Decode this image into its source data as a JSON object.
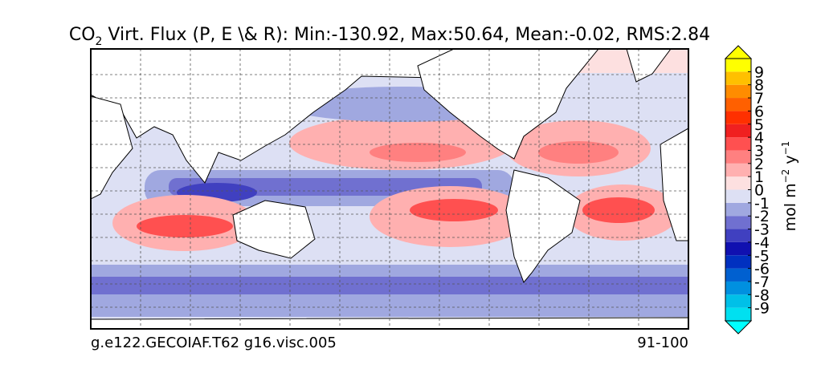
{
  "title": {
    "main": "CO",
    "sub": "2",
    "rest": " Virt. Flux (P, E \\& R): Min:-130.92, Max:50.64, Mean:-0.02, RMS:2.84"
  },
  "footer": {
    "left": "g.e122.GECOIAF.T62 g16.visc.005",
    "right": "91-100"
  },
  "colorbar": {
    "lim": [
      -10,
      10
    ],
    "ticks": [
      -9,
      -8,
      -7,
      -6,
      -5,
      -4,
      -3,
      -2,
      -1,
      0,
      1,
      2,
      3,
      4,
      5,
      6,
      7,
      8,
      9
    ],
    "colors": [
      "#00e0f0",
      "#00c0e8",
      "#0090e0",
      "#0060d0",
      "#0030c0",
      "#1010b0",
      "#4040c0",
      "#7070d0",
      "#a0a8e0",
      "#dde0f4",
      "#fde0e0",
      "#ffb0b0",
      "#ff8080",
      "#ff5050",
      "#f02020",
      "#ff3000",
      "#ff6000",
      "#ff8c00",
      "#ffc000",
      "#ffff00"
    ],
    "extend_low_color": "#00ffff",
    "extend_high_color": "#ffff00",
    "label": [
      "mol m",
      "−2",
      " y",
      "−1"
    ]
  }
}
